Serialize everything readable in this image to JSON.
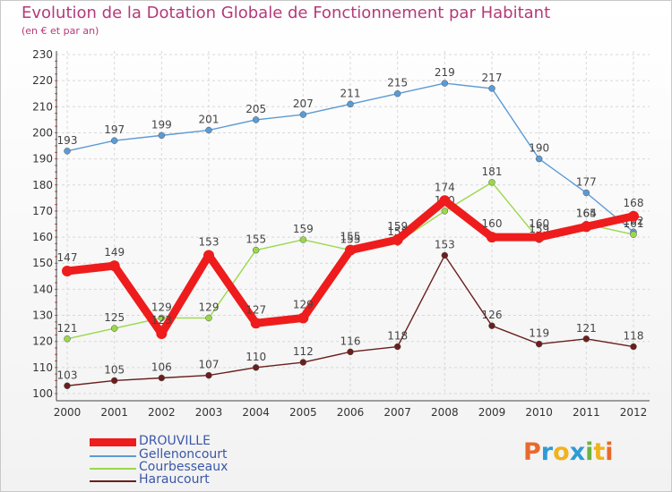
{
  "title": "Evolution de la Dotation Globale de Fonctionnement par Habitant",
  "subtitle": "(en € et par an)",
  "logo": {
    "letters": [
      "P",
      "r",
      "o",
      "x",
      "i",
      "t",
      "i"
    ],
    "colors": [
      "#e9692c",
      "#2f9bd4",
      "#f1b21d",
      "#2f9bd4",
      "#6cb33f",
      "#f1b21d",
      "#e9692c"
    ]
  },
  "chart_data": {
    "type": "line",
    "categories": [
      "2000",
      "2001",
      "2002",
      "2003",
      "2004",
      "2005",
      "2006",
      "2007",
      "2008",
      "2009",
      "2010",
      "2011",
      "2012"
    ],
    "ylim": [
      100,
      230
    ],
    "yticks": [
      100,
      110,
      120,
      130,
      140,
      150,
      160,
      170,
      180,
      190,
      200,
      210,
      220,
      230
    ],
    "grid": true,
    "legend_position": "bottom-left",
    "series": [
      {
        "name": "Gellenoncourt",
        "color": "#5b9bd5",
        "values": [
          193,
          197,
          199,
          201,
          205,
          207,
          211,
          215,
          219,
          217,
          190,
          177,
          162
        ],
        "labels": [
          "193",
          "197",
          "199",
          "201",
          "205",
          "207",
          "211",
          "215",
          "219",
          "217",
          "190",
          "177",
          "162"
        ]
      },
      {
        "name": "Courbesseaux",
        "color": "#9ad84a",
        "values": [
          121,
          125,
          129,
          129,
          155,
          159,
          155,
          158,
          170,
          181,
          159,
          165,
          161
        ],
        "labels": [
          "121",
          "125",
          "129",
          "129",
          "155",
          "159",
          "155",
          "158",
          "170",
          "181",
          "159",
          "165",
          "161"
        ]
      },
      {
        "name": "Haraucourt",
        "color": "#6b1e1e",
        "values": [
          103,
          105,
          106,
          107,
          110,
          112,
          116,
          118,
          153,
          126,
          119,
          121,
          118
        ],
        "labels": [
          "103",
          "105",
          "106",
          "107",
          "110",
          "112",
          "116",
          "118",
          "153",
          "126",
          "119",
          "121",
          "118"
        ]
      },
      {
        "name": "DROUVILLE",
        "color": "#ee1c1c",
        "values": [
          147,
          149,
          123,
          153,
          127,
          129,
          155,
          159,
          174,
          160,
          160,
          164,
          168
        ],
        "labels": [
          "147",
          "149",
          "123",
          "153",
          "127",
          "129",
          "155",
          "159",
          "174",
          "160",
          "160",
          "164",
          "168"
        ]
      }
    ],
    "legend_order": [
      "DROUVILLE",
      "Gellenoncourt",
      "Courbesseaux",
      "Haraucourt"
    ]
  }
}
